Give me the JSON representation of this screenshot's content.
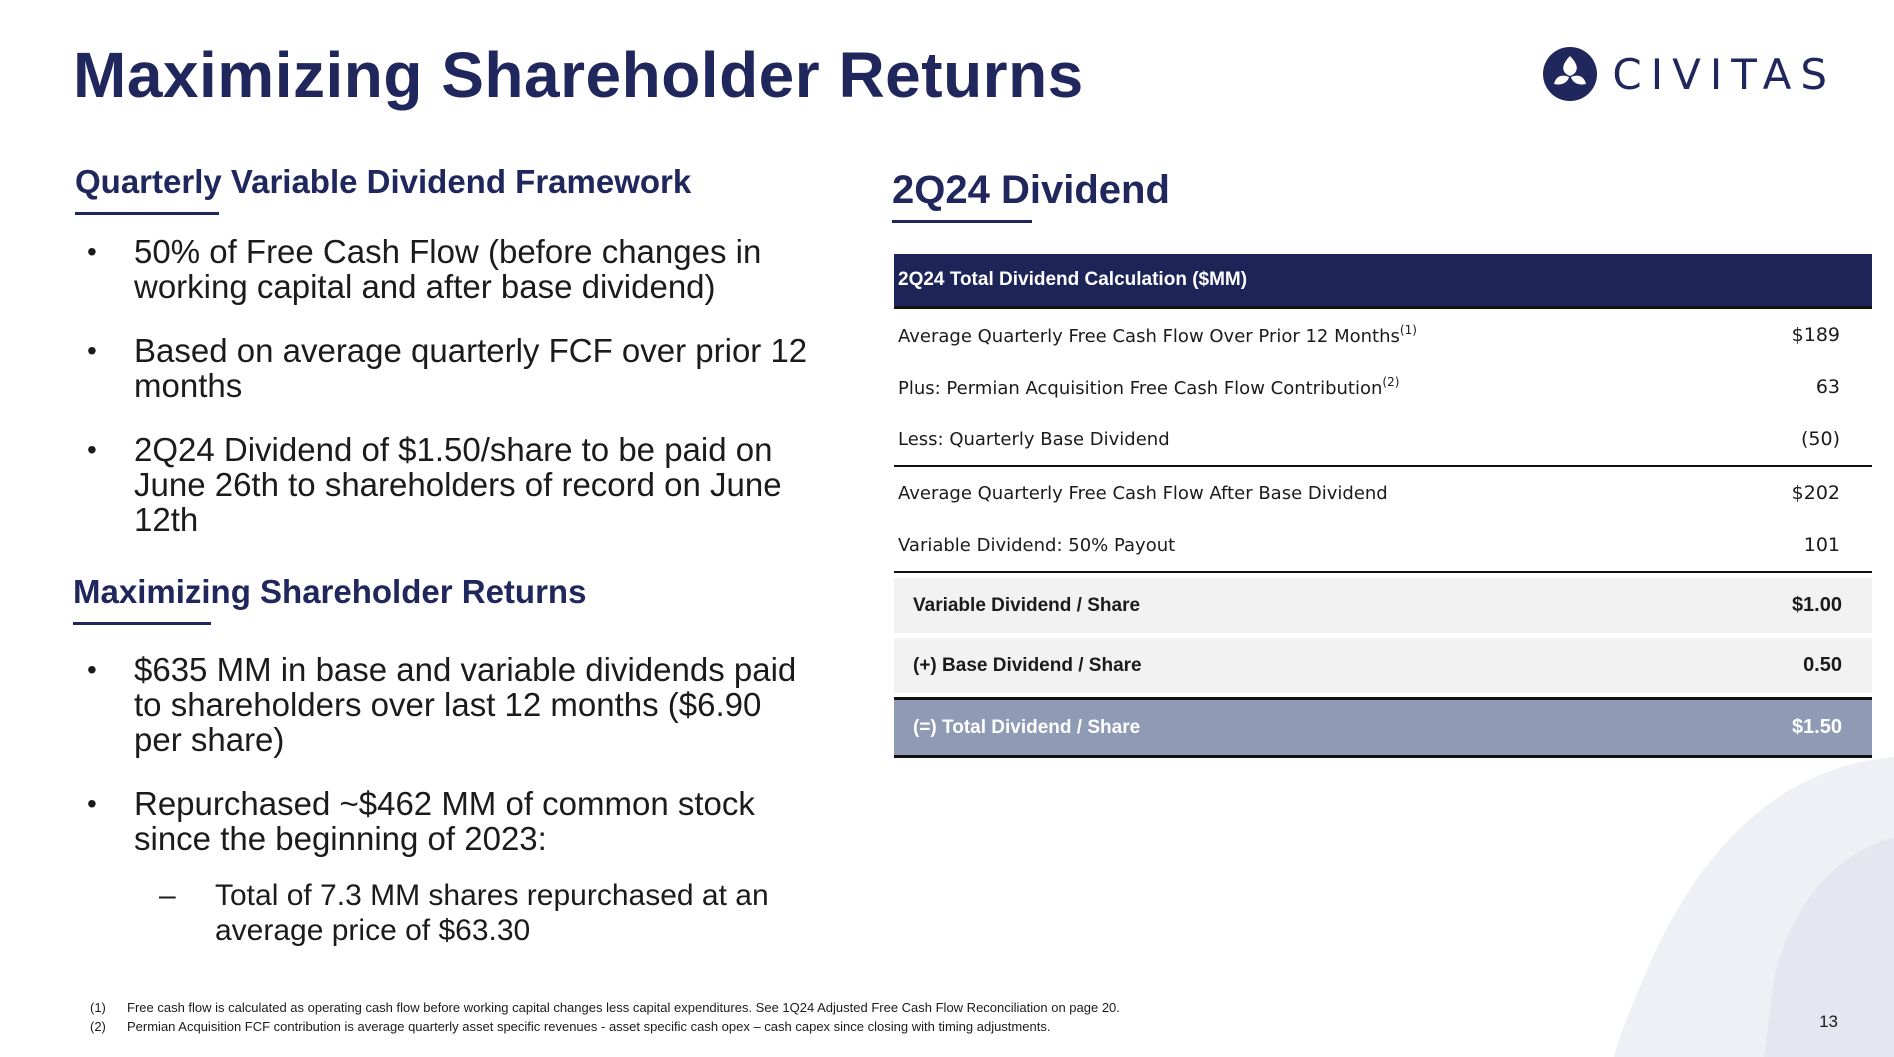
{
  "slide": {
    "title": "Maximizing Shareholder Returns",
    "logo_text": "CIVITAS",
    "page_number": "13"
  },
  "left": {
    "section1": {
      "heading": "Quarterly Variable Dividend Framework",
      "bullets": [
        "50% of Free Cash Flow (before changes in working capital and after base dividend)",
        "Based on average quarterly FCF over prior 12 months",
        "2Q24 Dividend of $1.50/share to be paid on June 26th to shareholders of record on June 12th"
      ]
    },
    "section2": {
      "heading": "Maximizing Shareholder Returns",
      "bullets": [
        "$635 MM in base and variable dividends paid to shareholders over last 12 months ($6.90 per share)",
        "Repurchased ~$462 MM of common stock since the beginning of 2023:"
      ],
      "sub_bullet": "Total of 7.3 MM shares repurchased at an average price of $63.30"
    }
  },
  "right": {
    "heading": "2Q24 Dividend",
    "table": {
      "header": "2Q24 Total Dividend Calculation ($MM)",
      "rows": [
        {
          "label": "Average Quarterly Free Cash Flow Over Prior 12 Months",
          "sup": "(1)",
          "value": "$189"
        },
        {
          "label": "Plus: Permian Acquisition Free Cash Flow Contribution",
          "sup": "(2)",
          "value": "63"
        },
        {
          "label": "Less: Quarterly Base Dividend",
          "sup": "",
          "value": "(50)"
        },
        {
          "label": "Average Quarterly Free Cash Flow After Base Dividend",
          "sup": "",
          "value": "$202"
        },
        {
          "label": "Variable Dividend: 50% Payout",
          "sup": "",
          "value": "101"
        }
      ],
      "summary": [
        {
          "label": "Variable Dividend / Share",
          "value": "$1.00"
        },
        {
          "label": "(+) Base Dividend / Share",
          "value": "0.50"
        },
        {
          "label": "(=) Total Dividend / Share",
          "value": "$1.50"
        }
      ]
    }
  },
  "footnotes": [
    {
      "num": "(1)",
      "text": "Free cash flow is calculated as operating cash flow before working capital changes less capital expenditures. See 1Q24 Adjusted Free Cash Flow Reconciliation on page 20."
    },
    {
      "num": "(2)",
      "text": "Permian Acquisition FCF contribution is average quarterly asset specific revenues - asset specific cash opex – cash capex since closing with timing adjustments."
    }
  ],
  "colors": {
    "navy": "#20275d",
    "header_navy": "#1d2458",
    "total_row": "#8f9ab5",
    "summary_row": "#f2f2f2"
  }
}
